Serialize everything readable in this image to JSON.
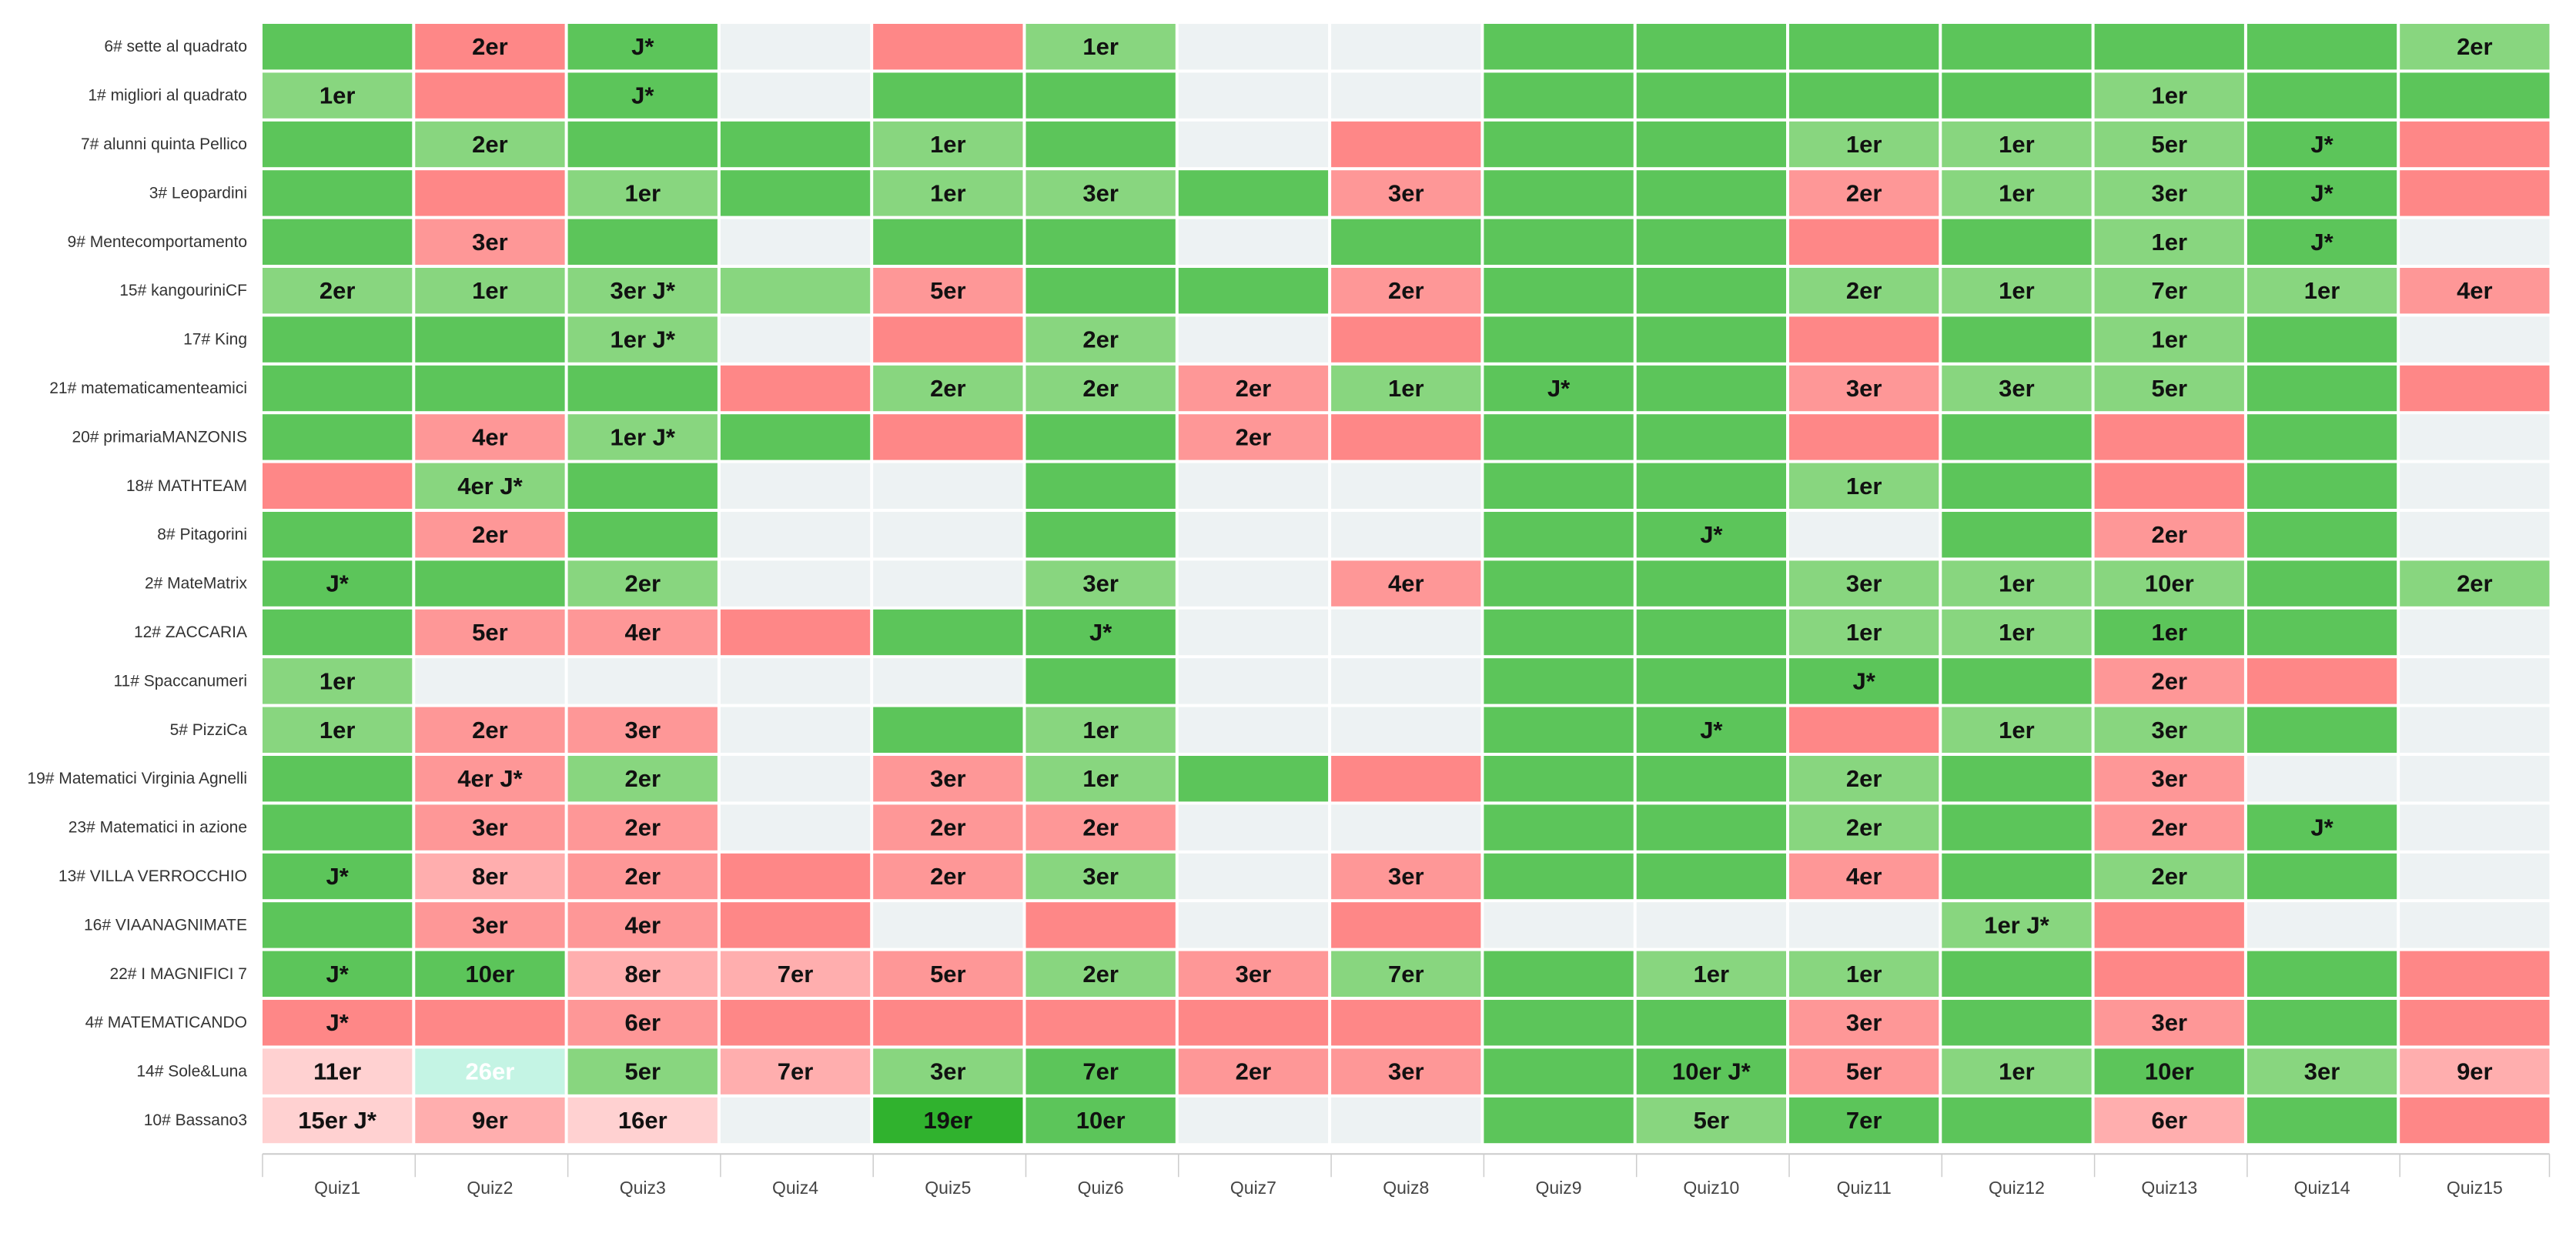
{
  "chart_data": {
    "type": "heatmap",
    "rows": [
      "6# sette al quadrato",
      "1# migliori al quadrato",
      "7# alunni quinta Pellico",
      "3# Leopardini",
      "9# Mentecomportamento",
      "15# kangouriniCF",
      "17# King",
      "21# matematicamenteamici",
      "20# primariaMANZONIS",
      "18# MATHTEAM",
      "8# Pitagorini",
      "2# MateMatrix",
      "12# ZACCARIA",
      "11# Spaccanumeri",
      "5# PizziCa",
      "19# Matematici Virginia Agnelli",
      "23# Matematici in azione",
      "13# VILLA VERROCCHIO",
      "16# VIAANAGNIMATE",
      "22# I MAGNIFICI 7",
      "4# MATEMATICANDO",
      "14# Sole&Luna",
      "10# Bassano3"
    ],
    "columns": [
      "Quiz1",
      "Quiz2",
      "Quiz3",
      "Quiz4",
      "Quiz5",
      "Quiz6",
      "Quiz7",
      "Quiz8",
      "Quiz9",
      "Quiz10",
      "Quiz11",
      "Quiz12",
      "Quiz13",
      "Quiz14",
      "Quiz15"
    ],
    "status_legend": {
      "G": "correct",
      "g": "correct-after-errors",
      "R": "wrong",
      "r": "wrong-light",
      "p": "wrong-pale",
      "q": "wrong-very-pale",
      "N": "not-answered",
      "T": "teal",
      "D": "dark-green"
    },
    "status": [
      "GRGNRgNNGGGGGGg",
      "gRGNGGNNGGGGgGG",
      "GgGGgGNRGGgggGR",
      "GRgGggGrGGrggGR",
      "GrGNGGNGGGRGgGN",
      "ggggrGGrGGggggr",
      "GGgNRgNRGGRGgGN",
      "GGGRggrgGGrggGR",
      "GrgGRGrRGGRGRGN",
      "RgGNNGNNGGgGRGN",
      "GrGNNGNNGGNGrGN",
      "GGgNNgNrGGgggGg",
      "GrrRGGNNGGggGGN",
      "gNNNNGNNGGGGrRN",
      "grrNGgNNGGRggGN",
      "GrgNrgGRGGgGrNN",
      "GrrNrrNNGGgGrGN",
      "GprRrgNrGGrGgGN",
      "GrrRNRNRNNNgRNN",
      "GGpprgrgGggGRGR",
      "RRrRRRRRGGrGrGR",
      "qTgpgGrrGGrgGgp",
      "qpqNDGNNGgGGpGR"
    ],
    "labels": [
      [
        "",
        "2er",
        "J*",
        "",
        "",
        "1er",
        "",
        "",
        "",
        "",
        "",
        "",
        "",
        "",
        "2er"
      ],
      [
        "1er",
        "",
        "J*",
        "",
        "",
        "",
        "",
        "",
        "",
        "",
        "",
        "",
        "1er",
        "",
        ""
      ],
      [
        "",
        "2er",
        "",
        "",
        "1er",
        "",
        "",
        "",
        "",
        "",
        "1er",
        "1er",
        "5er",
        "J*",
        ""
      ],
      [
        "",
        "",
        "1er",
        "",
        "1er",
        "3er",
        "",
        "3er",
        "",
        "",
        "2er",
        "1er",
        "3er",
        "J*",
        ""
      ],
      [
        "",
        "3er",
        "",
        "",
        "",
        "",
        "",
        "",
        "",
        "",
        "",
        "",
        "1er",
        "J*",
        ""
      ],
      [
        "2er",
        "1er",
        "3er J*",
        "",
        "5er",
        "",
        "",
        "2er",
        "",
        "",
        "2er",
        "1er",
        "7er",
        "1er",
        "4er"
      ],
      [
        "",
        "",
        "1er J*",
        "",
        "",
        "2er",
        "",
        "",
        "",
        "",
        "",
        "",
        "1er",
        "",
        ""
      ],
      [
        "",
        "",
        "",
        "",
        "2er",
        "2er",
        "2er",
        "1er",
        "J*",
        "",
        "3er",
        "3er",
        "5er",
        "",
        ""
      ],
      [
        "",
        "4er",
        "1er J*",
        "",
        "",
        "",
        "2er",
        "",
        "",
        "",
        "",
        "",
        "",
        "",
        ""
      ],
      [
        "",
        "4er J*",
        "",
        "",
        "",
        "",
        "",
        "",
        "",
        "",
        "1er",
        "",
        "",
        "",
        ""
      ],
      [
        "",
        "2er",
        "",
        "",
        "",
        "",
        "",
        "",
        "",
        "J*",
        "",
        "",
        "2er",
        "",
        ""
      ],
      [
        "J*",
        "",
        "2er",
        "",
        "",
        "3er",
        "",
        "4er",
        "",
        "",
        "3er",
        "1er",
        "10er",
        "",
        "2er"
      ],
      [
        "",
        "5er",
        "4er",
        "",
        "",
        "J*",
        "",
        "",
        "",
        "",
        "1er",
        "1er",
        "1er",
        "",
        ""
      ],
      [
        "1er",
        "",
        "",
        "",
        "",
        "",
        "",
        "",
        "",
        "",
        "J*",
        "",
        "2er",
        "",
        ""
      ],
      [
        "1er",
        "2er",
        "3er",
        "",
        "",
        "1er",
        "",
        "",
        "",
        "J*",
        "",
        "1er",
        "3er",
        "",
        ""
      ],
      [
        "",
        "4er J*",
        "2er",
        "",
        "3er",
        "1er",
        "",
        "",
        "",
        "",
        "2er",
        "",
        "3er",
        "",
        ""
      ],
      [
        "",
        "3er",
        "2er",
        "",
        "2er",
        "2er",
        "",
        "",
        "",
        "",
        "2er",
        "",
        "2er",
        "J*",
        ""
      ],
      [
        "J*",
        "8er",
        "2er",
        "",
        "2er",
        "3er",
        "",
        "3er",
        "",
        "",
        "4er",
        "",
        "2er",
        "",
        ""
      ],
      [
        "",
        "3er",
        "4er",
        "",
        "",
        "",
        "",
        "",
        "",
        "",
        "",
        "1er J*",
        "",
        "",
        ""
      ],
      [
        "J*",
        "10er",
        "8er",
        "7er",
        "5er",
        "2er",
        "3er",
        "7er",
        "",
        "1er",
        "1er",
        "",
        "",
        "",
        ""
      ],
      [
        "J*",
        "",
        "6er",
        "",
        "",
        "",
        "",
        "",
        "",
        "",
        "3er",
        "",
        "3er",
        "",
        ""
      ],
      [
        "11er",
        "26er",
        "5er",
        "7er",
        "3er",
        "7er",
        "2er",
        "3er",
        "",
        "10er J*",
        "5er",
        "1er",
        "10er",
        "3er",
        "9er"
      ],
      [
        "15er J*",
        "9er",
        "16er",
        "",
        "19er",
        "10er",
        "",
        "",
        "",
        "5er",
        "7er",
        "",
        "6er",
        "",
        ""
      ]
    ],
    "colors": {
      "G": "#5cc55a",
      "g": "#88d67f",
      "R": "#fe8787",
      "r": "#fe9797",
      "p": "#ffaeae",
      "q": "#ffd1d1",
      "N": "#edf2f3",
      "T": "#c4f4e4",
      "D": "#30b22e",
      "text": "#111111",
      "text_on_teal": "#ffffff",
      "axis": "#cccccc"
    }
  }
}
